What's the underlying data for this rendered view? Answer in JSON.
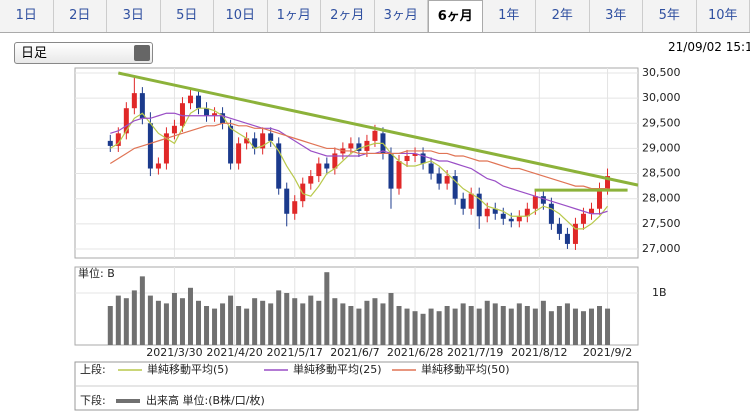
{
  "tabs": [
    "1日",
    "2日",
    "3日",
    "5日",
    "10日",
    "1ヶ月",
    "2ヶ月",
    "3ヶ月",
    "6ヶ月",
    "1年",
    "2年",
    "3年",
    "5年",
    "10年"
  ],
  "selected_tab": 8,
  "dropdown": "日足",
  "timestamp": "21/09/02 15:1",
  "chart_data": [
    {
      "type": "candlestick",
      "xlim": [
        -4.4,
        65.8
      ],
      "ylim": [
        26820,
        30600
      ],
      "yticks": [
        {
          "value": 30500,
          "label": "30,500"
        },
        {
          "value": 30000,
          "label": "30,000"
        },
        {
          "value": 29500,
          "label": "29,500"
        },
        {
          "value": 29000,
          "label": "29,000"
        },
        {
          "value": 28500,
          "label": "28,500"
        },
        {
          "value": 28000,
          "label": "28,000"
        },
        {
          "value": 27500,
          "label": "27,500"
        },
        {
          "value": 27000,
          "label": "27,000"
        }
      ],
      "xticks": [
        {
          "value": 8,
          "label": "2021/3/30"
        },
        {
          "value": 15.5,
          "label": "2021/4/20"
        },
        {
          "value": 23,
          "label": "2021/5/17"
        },
        {
          "value": 30.5,
          "label": "2021/6/7"
        },
        {
          "value": 38,
          "label": "2021/6/28"
        },
        {
          "value": 45.5,
          "label": "2021/7/19"
        },
        {
          "value": 53.5,
          "label": "2021/8/12"
        },
        {
          "value": 62,
          "label": "2021/9/2"
        }
      ],
      "grid": true,
      "up_color": "#e02828",
      "down_color": "#1b3a8c",
      "open": [
        29150,
        29050,
        29300,
        29800,
        30100,
        29500,
        28600,
        28700,
        29300,
        29450,
        29900,
        30050,
        29800,
        29650,
        29700,
        29450,
        28700,
        29100,
        29200,
        29000,
        29300,
        29100,
        28200,
        27700,
        27950,
        28300,
        28450,
        28700,
        28600,
        28900,
        29000,
        29100,
        28950,
        29150,
        29300,
        28900,
        28200,
        28750,
        28850,
        28900,
        28700,
        28500,
        28300,
        28450,
        28000,
        27800,
        28100,
        27650,
        27800,
        27700,
        27600,
        27550,
        27650,
        27800,
        28050,
        27900,
        27500,
        27300,
        27100,
        27500,
        27700,
        27800,
        28200
      ],
      "high": [
        29270,
        29420,
        29920,
        30450,
        30220,
        29720,
        28820,
        29420,
        29570,
        30020,
        30200,
        30170,
        29920,
        29820,
        29820,
        29570,
        29220,
        29320,
        29320,
        29420,
        29420,
        29220,
        28320,
        28070,
        28420,
        28570,
        28820,
        28820,
        29020,
        29120,
        29220,
        29220,
        29270,
        29470,
        29420,
        29020,
        28870,
        28970,
        29020,
        29020,
        28820,
        28620,
        28570,
        28570,
        28120,
        28220,
        28220,
        27920,
        27920,
        27820,
        27720,
        27770,
        27920,
        28170,
        28170,
        28020,
        27620,
        27420,
        27620,
        27820,
        27920,
        28320,
        28600
      ],
      "low": [
        28930,
        28930,
        29180,
        29680,
        29480,
        28450,
        28480,
        28580,
        29180,
        29330,
        29780,
        29680,
        29530,
        29530,
        29380,
        28580,
        28580,
        28980,
        28880,
        28880,
        29030,
        28080,
        27450,
        27580,
        27830,
        28180,
        28330,
        28480,
        28480,
        28780,
        28880,
        28830,
        28830,
        29030,
        28780,
        27800,
        28080,
        28630,
        28730,
        28580,
        28380,
        28180,
        28180,
        27880,
        27680,
        27680,
        27400,
        27530,
        27580,
        27480,
        27430,
        27430,
        27530,
        27680,
        27780,
        27380,
        27180,
        27000,
        26980,
        27380,
        27580,
        27680,
        28080
      ],
      "close": [
        29050,
        29300,
        29800,
        30100,
        29600,
        28600,
        28700,
        29300,
        29450,
        29900,
        30050,
        29800,
        29650,
        29700,
        29500,
        28700,
        29100,
        29200,
        29000,
        29300,
        29150,
        28200,
        27700,
        27950,
        28300,
        28450,
        28700,
        28600,
        28900,
        29000,
        29100,
        28950,
        29150,
        29350,
        28900,
        28200,
        28750,
        28850,
        28900,
        28700,
        28500,
        28300,
        28450,
        28000,
        27800,
        28100,
        27650,
        27800,
        27700,
        27600,
        27550,
        27650,
        27800,
        28050,
        27900,
        27500,
        27300,
        27100,
        27500,
        27700,
        27800,
        28200,
        28450
      ],
      "legend_title": "上段:",
      "series": [
        {
          "name": "単純移動平均(5)",
          "color": "#b9c94c",
          "values": [
            29000,
            29100,
            29350,
            29600,
            29700,
            29500,
            29300,
            29200,
            29100,
            29400,
            29700,
            29800,
            29800,
            29750,
            29650,
            29400,
            29300,
            29200,
            29000,
            29050,
            29150,
            28950,
            28650,
            28400,
            28100,
            28050,
            28250,
            28500,
            28600,
            28750,
            28900,
            29000,
            29050,
            29100,
            29100,
            28900,
            28750,
            28650,
            28650,
            28700,
            28750,
            28650,
            28500,
            28350,
            28200,
            28100,
            28000,
            27850,
            27800,
            27750,
            27650,
            27650,
            27650,
            27750,
            27850,
            27800,
            27700,
            27550,
            27400,
            27400,
            27500,
            27650,
            27850
          ]
        },
        {
          "name": "単純移動平均(25)",
          "color": "#9a4fc6",
          "values": [
            29300,
            29350,
            29450,
            29550,
            29600,
            29600,
            29650,
            29700,
            29700,
            29650,
            29650,
            29650,
            29650,
            29650,
            29650,
            29600,
            29550,
            29500,
            29450,
            29400,
            29400,
            29350,
            29250,
            29150,
            29050,
            28950,
            28900,
            28850,
            28850,
            28850,
            28850,
            28850,
            28900,
            28900,
            28950,
            28900,
            28900,
            28900,
            28900,
            28850,
            28800,
            28750,
            28750,
            28700,
            28650,
            28600,
            28500,
            28400,
            28350,
            28250,
            28200,
            28150,
            28100,
            28050,
            28000,
            27950,
            27900,
            27850,
            27800,
            27750,
            27700,
            27700,
            27750
          ]
        },
        {
          "name": "単純移動平均(50)",
          "color": "#e07455",
          "values": [
            28700,
            28800,
            28900,
            29000,
            29050,
            29100,
            29150,
            29200,
            29250,
            29300,
            29350,
            29400,
            29450,
            29450,
            29500,
            29500,
            29450,
            29450,
            29400,
            29400,
            29350,
            29300,
            29250,
            29200,
            29150,
            29100,
            29050,
            29000,
            29000,
            28950,
            28950,
            28900,
            28900,
            28900,
            28900,
            28900,
            28900,
            28950,
            28950,
            28950,
            28950,
            28900,
            28900,
            28850,
            28850,
            28800,
            28750,
            28750,
            28700,
            28650,
            28600,
            28600,
            28550,
            28500,
            28450,
            28400,
            28350,
            28300,
            28250,
            28250,
            28200,
            28200,
            28200
          ]
        }
      ],
      "trendlines": [
        {
          "color": "#8cb23a",
          "points": [
            [
              1,
              30500
            ],
            [
              65.8,
              28270
            ]
          ]
        },
        {
          "color": "#8cb23a",
          "points": [
            [
              52.9,
              28170
            ],
            [
              64.5,
              28170
            ]
          ]
        }
      ]
    },
    {
      "type": "bar",
      "ylim": [
        0,
        1.5
      ],
      "yticks": [
        {
          "value": 1,
          "label": "1B"
        }
      ],
      "axis_label": "単位: B",
      "color": "#707070",
      "legend_title": "下段:",
      "legend_label": "出来高 単位:(B株/口/枚)",
      "values": [
        0.75,
        0.95,
        0.9,
        1.05,
        1.32,
        0.95,
        0.85,
        0.8,
        1.0,
        0.9,
        1.1,
        0.85,
        0.75,
        0.7,
        0.8,
        0.95,
        0.75,
        0.7,
        0.9,
        0.85,
        0.8,
        1.05,
        1.0,
        0.9,
        0.8,
        0.95,
        0.85,
        1.4,
        0.9,
        0.8,
        0.75,
        0.7,
        0.85,
        0.9,
        0.8,
        1.0,
        0.75,
        0.7,
        0.65,
        0.6,
        0.7,
        0.65,
        0.75,
        0.7,
        0.8,
        0.75,
        0.7,
        0.85,
        0.8,
        0.75,
        0.7,
        0.8,
        0.75,
        0.7,
        0.85,
        0.65,
        0.75,
        0.8,
        0.7,
        0.65,
        0.7,
        0.75,
        0.7
      ]
    }
  ]
}
